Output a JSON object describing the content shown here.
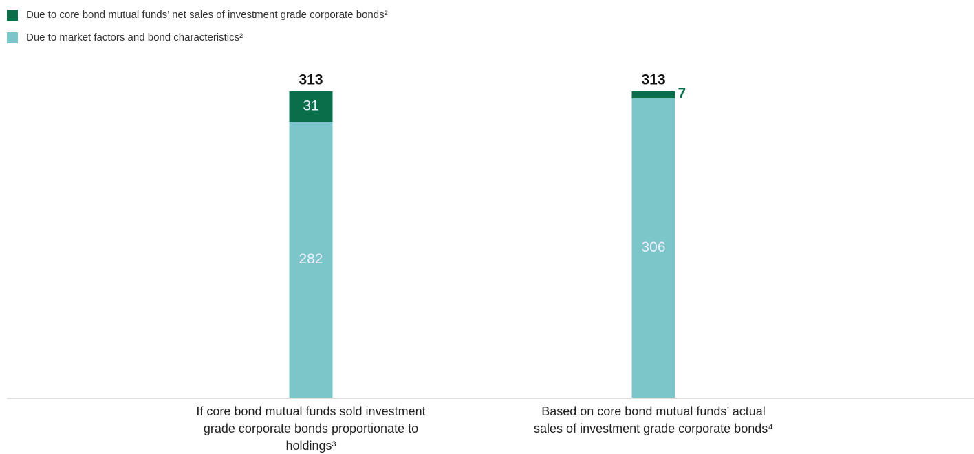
{
  "chart_data": {
    "type": "stacked_bar",
    "categories": [
      "If core bond mutual funds sold investment grade corporate bonds proportionate to holdings³",
      "Based on core bond mutual funds’ actual sales of investment grade corporate bonds⁴"
    ],
    "series": [
      {
        "name": "Due to core bond mutual funds’ net sales of investment grade corporate bonds²",
        "color": "#0b6e4b",
        "values": [
          31,
          7
        ]
      },
      {
        "name": "Due to market factors and bond characteristics²",
        "color": "#7cc5c9",
        "values": [
          282,
          306
        ]
      }
    ],
    "totals": [
      313,
      313
    ]
  }
}
